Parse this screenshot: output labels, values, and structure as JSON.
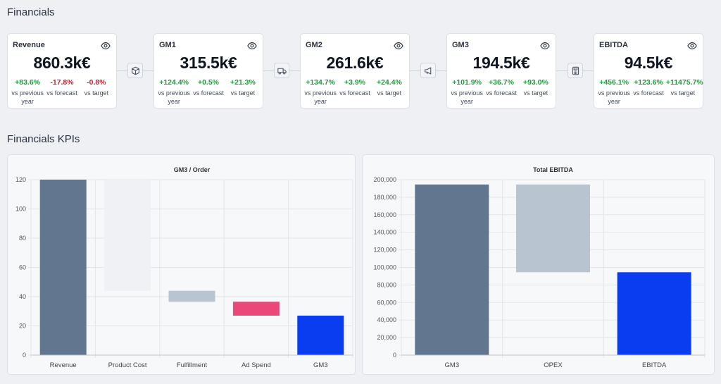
{
  "headers": {
    "financials": "Financials",
    "kpis": "Financials KPIs"
  },
  "cards": [
    {
      "name": "Revenue",
      "value": "860.3k€",
      "stats": [
        {
          "delta": "+83.6%",
          "label": "vs previous year",
          "tone": "pos"
        },
        {
          "delta": "-17.8%",
          "label": "vs forecast",
          "tone": "neg"
        },
        {
          "delta": "-0.8%",
          "label": "vs target",
          "tone": "neg"
        }
      ]
    },
    {
      "name": "GM1",
      "value": "315.5k€",
      "stats": [
        {
          "delta": "+124.4%",
          "label": "vs previous year",
          "tone": "pos"
        },
        {
          "delta": "+0.5%",
          "label": "vs forecast",
          "tone": "pos"
        },
        {
          "delta": "+21.3%",
          "label": "vs target",
          "tone": "pos"
        }
      ]
    },
    {
      "name": "GM2",
      "value": "261.6k€",
      "stats": [
        {
          "delta": "+134.7%",
          "label": "vs previous year",
          "tone": "pos"
        },
        {
          "delta": "+3.9%",
          "label": "vs forecast",
          "tone": "pos"
        },
        {
          "delta": "+24.4%",
          "label": "vs target",
          "tone": "pos"
        }
      ]
    },
    {
      "name": "GM3",
      "value": "194.5k€",
      "stats": [
        {
          "delta": "+101.9%",
          "label": "vs previous year",
          "tone": "pos"
        },
        {
          "delta": "+36.7%",
          "label": "vs forecast",
          "tone": "pos"
        },
        {
          "delta": "+93.0%",
          "label": "vs target",
          "tone": "pos"
        }
      ]
    },
    {
      "name": "EBITDA",
      "value": "94.5k€",
      "stats": [
        {
          "delta": "+456.1%",
          "label": "vs previous year",
          "tone": "pos"
        },
        {
          "delta": "+123.6%",
          "label": "vs forecast",
          "tone": "pos"
        },
        {
          "delta": "+11475.7%",
          "label": "vs target",
          "tone": "pos"
        }
      ]
    }
  ],
  "connectors": [
    "box-icon",
    "truck-icon",
    "megaphone-icon",
    "calculator-icon"
  ],
  "colors": {
    "positive": "#1f9d3a",
    "negative": "#d21f2a",
    "bar_slate": "#62768f",
    "bar_light": "#f0f1f4",
    "bar_grey": "#b8c4cf",
    "bar_pink": "#eb4778",
    "bar_blue": "#0a3cf0"
  },
  "chart_data": [
    {
      "type": "bar",
      "subtype": "waterfall",
      "title": "GM3 / Order",
      "categories": [
        "Revenue",
        "Product Cost",
        "Fulfillment",
        "Ad Spend",
        "GM3"
      ],
      "bars": [
        {
          "start": 0,
          "end": 120,
          "color": "#62768f"
        },
        {
          "start": 44,
          "end": 120,
          "color": "#f0f1f4"
        },
        {
          "start": 36.5,
          "end": 44,
          "color": "#b8c4cf"
        },
        {
          "start": 27,
          "end": 36.5,
          "color": "#eb4778"
        },
        {
          "start": 0,
          "end": 27,
          "color": "#0a3cf0"
        }
      ],
      "ylim": [
        0,
        120
      ],
      "yticks": [
        0,
        20,
        40,
        60,
        80,
        100,
        120
      ],
      "ytick_labels": [
        "0",
        "20",
        "40",
        "60",
        "80",
        "100",
        "120"
      ],
      "grid": true
    },
    {
      "type": "bar",
      "subtype": "waterfall",
      "title": "Total EBITDA",
      "categories": [
        "GM3",
        "OPEX",
        "EBITDA"
      ],
      "bars": [
        {
          "start": 0,
          "end": 194500,
          "color": "#62768f"
        },
        {
          "start": 94500,
          "end": 194500,
          "color": "#b8c4cf"
        },
        {
          "start": 0,
          "end": 94500,
          "color": "#0a3cf0"
        }
      ],
      "ylim": [
        0,
        200000
      ],
      "yticks": [
        0,
        20000,
        40000,
        60000,
        80000,
        100000,
        120000,
        140000,
        160000,
        180000,
        200000
      ],
      "ytick_labels": [
        "0",
        "20,000",
        "40,000",
        "60,000",
        "80,000",
        "100,000",
        "120,000",
        "140,000",
        "160,000",
        "180,000",
        "200,000"
      ],
      "grid": true
    }
  ]
}
